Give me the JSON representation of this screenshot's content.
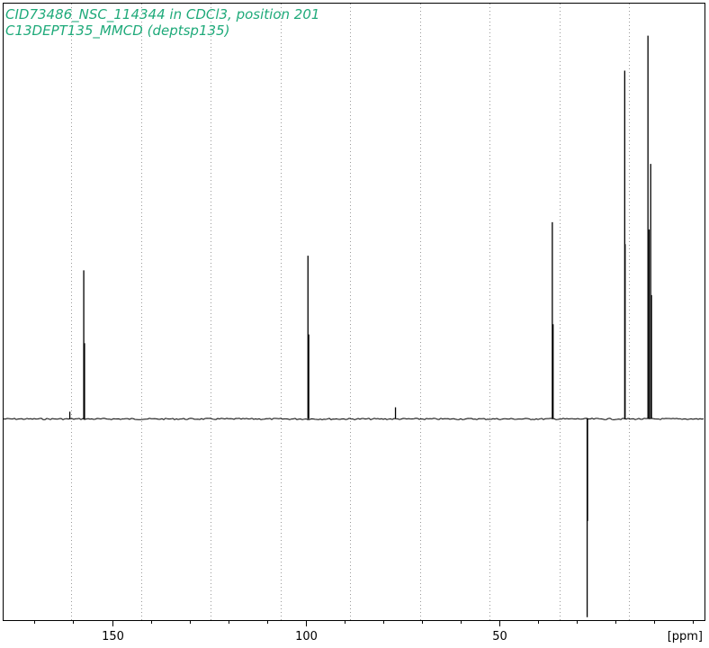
{
  "colors": {
    "title": "#1faa7a",
    "spectrum": "#000000",
    "grid": "#9a9a9a",
    "frame": "#000000"
  },
  "chart_data": {
    "type": "line",
    "title": "CID73486_NSC_114344 in CDCl3, position 201",
    "subtitle": "C13DEPT135_MMCD (deptsp135)",
    "xlabel": "[ppm]",
    "ylabel": "",
    "x_reversed": true,
    "xlim": [
      178,
      -3
    ],
    "ylim": [
      -1.38,
      2.85
    ],
    "grid": "vertical-dotted",
    "grid_lines": [
      160.5,
      142.5,
      124.5,
      106.5,
      88.5,
      70.5,
      52.5,
      34.5,
      16.5
    ],
    "major_ticks": [
      150,
      100,
      50
    ],
    "minor_ticks": [
      170,
      160,
      140,
      130,
      120,
      110,
      90,
      80,
      70,
      60,
      40,
      30,
      20,
      10,
      0
    ],
    "tick_labels": [
      "150",
      "100",
      "50",
      "[ppm]"
    ],
    "series": [
      {
        "peaks": [
          {
            "ppm": 157.3,
            "intensity": 1.02
          },
          {
            "ppm": 157.1,
            "intensity": 0.52
          },
          {
            "ppm": 160.9,
            "intensity": 0.05
          },
          {
            "ppm": 99.4,
            "intensity": 1.12
          },
          {
            "ppm": 99.2,
            "intensity": 0.58
          },
          {
            "ppm": 76.8,
            "intensity": 0.08
          },
          {
            "ppm": 36.3,
            "intensity": 1.35
          },
          {
            "ppm": 36.1,
            "intensity": 0.65
          },
          {
            "ppm": 27.3,
            "intensity": -1.36
          },
          {
            "ppm": 27.2,
            "intensity": -0.7
          },
          {
            "ppm": 17.6,
            "intensity": 2.39
          },
          {
            "ppm": 17.5,
            "intensity": 1.2
          },
          {
            "ppm": 11.6,
            "intensity": 2.63
          },
          {
            "ppm": 11.3,
            "intensity": 1.3
          },
          {
            "ppm": 10.9,
            "intensity": 1.75
          },
          {
            "ppm": 10.7,
            "intensity": 0.85
          }
        ]
      }
    ]
  }
}
